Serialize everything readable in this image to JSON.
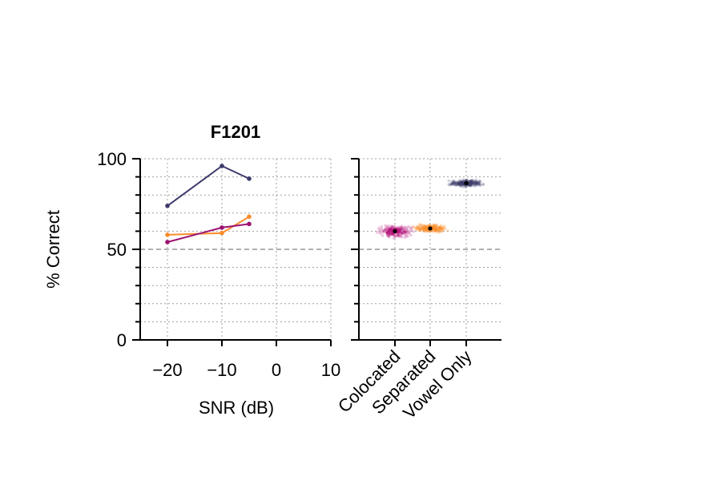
{
  "chart_data": [
    {
      "type": "line",
      "title": "F1201",
      "xlabel": "SNR (dB)",
      "ylabel": "% Correct",
      "xlim": [
        -25,
        10
      ],
      "ylim": [
        0,
        100
      ],
      "xticks": [
        -20,
        -10,
        0,
        10
      ],
      "xtick_labels": [
        "−20",
        "−10",
        "0",
        "10"
      ],
      "yticks": [
        0,
        50,
        100
      ],
      "ytick_labels": [
        "0",
        "50",
        "100"
      ],
      "grid": true,
      "chance_level": 50,
      "series": [
        {
          "color": "#3d3b6b",
          "x": [
            -20,
            -10,
            -5
          ],
          "y": [
            74,
            96,
            89
          ]
        },
        {
          "color": "#f98c2a",
          "x": [
            -20,
            -10,
            -5
          ],
          "y": [
            58,
            59,
            68
          ]
        },
        {
          "color": "#9c1372",
          "x": [
            -20,
            -10,
            -5
          ],
          "y": [
            54,
            62,
            64
          ]
        }
      ]
    },
    {
      "type": "scatter",
      "categories": [
        "Colocated",
        "Separated",
        "Vowel Only"
      ],
      "ylim": [
        0,
        100
      ],
      "grid": true,
      "chance_level": 50,
      "series": [
        {
          "category": "Colocated",
          "color": "#b5137a",
          "mean": 60,
          "ci": [
            59,
            61
          ],
          "spread": [
            57,
            62
          ]
        },
        {
          "category": "Separated",
          "color": "#f98c2a",
          "mean": 61.5,
          "ci": [
            60.5,
            62.5
          ],
          "spread": [
            59.5,
            63
          ]
        },
        {
          "category": "Vowel Only",
          "color": "#3d3b6b",
          "mean": 86.5,
          "ci": [
            85.5,
            87.5
          ],
          "spread": [
            85,
            88
          ]
        }
      ]
    }
  ]
}
